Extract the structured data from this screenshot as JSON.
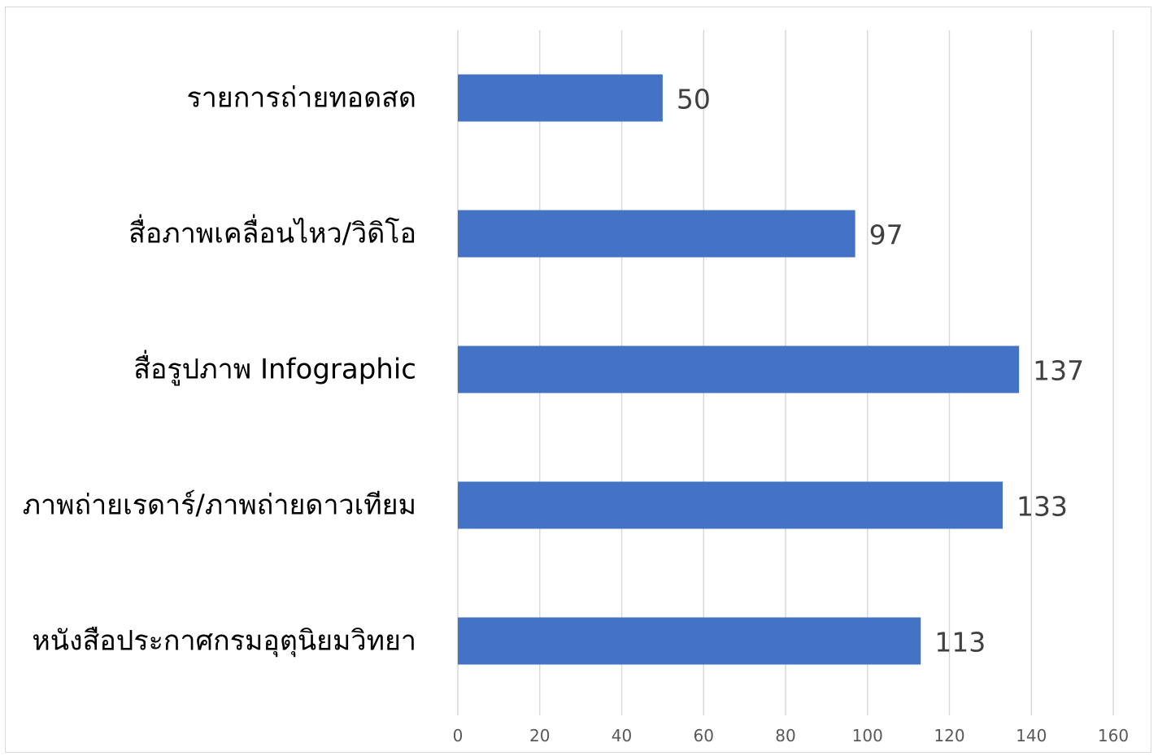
{
  "chart_data": {
    "type": "bar",
    "orientation": "horizontal",
    "categories": [
      "รายการถ่ายทอดสด",
      "สื่อภาพเคลื่อนไหว/วิดิโอ",
      "สื่อรูปภาพ Infographic",
      "ภาพถ่ายเรดาร์/ภาพถ่ายดาวเทียม",
      "หนังสือประกาศกรมอุตุนิยมวิทยา"
    ],
    "values": [
      50,
      97,
      137,
      133,
      113
    ],
    "data_labels": [
      "50",
      "97",
      "137",
      "133",
      "113"
    ],
    "xlim": [
      0,
      160
    ],
    "x_ticks": [
      0,
      20,
      40,
      60,
      80,
      100,
      120,
      140,
      160
    ],
    "x_tick_labels": [
      "0",
      "20",
      "40",
      "60",
      "80",
      "100",
      "120",
      "140",
      "160"
    ],
    "grid": true,
    "legend": "none",
    "bar_color": "#4472C4",
    "grid_color": "#D9D9D9"
  }
}
